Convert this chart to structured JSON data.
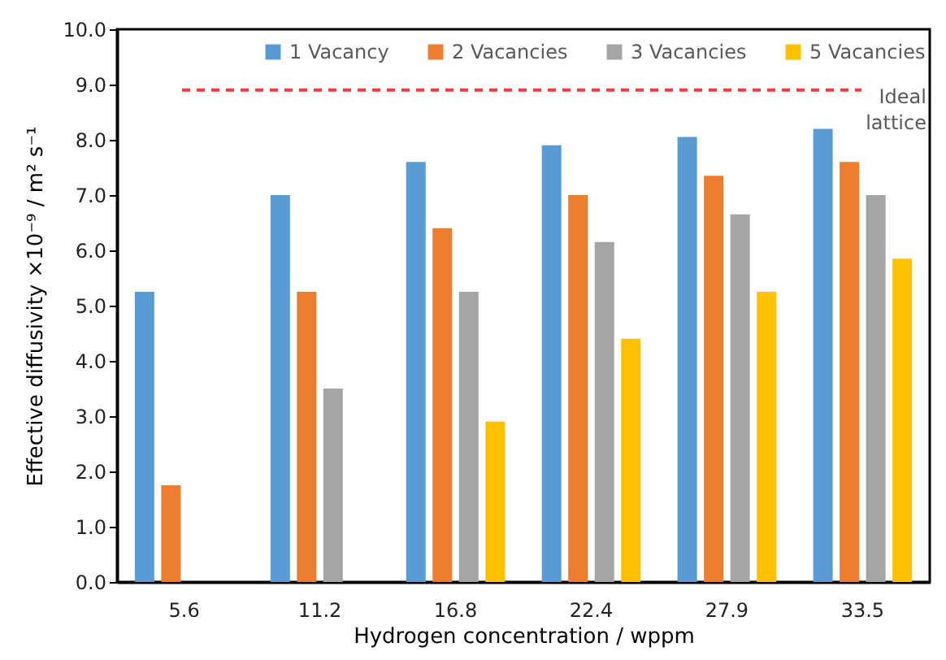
{
  "chart_data": {
    "type": "bar",
    "xlabel": "Hydrogen concentration / wppm",
    "ylabel": "Effective diffusivity ×10⁻⁹ / m² s⁻¹",
    "categories": [
      "5.6",
      "11.2",
      "16.8",
      "22.4",
      "27.9",
      "33.5"
    ],
    "series": [
      {
        "name": "1 Vacancy",
        "color": "#5b9bd5",
        "values": [
          5.25,
          7.0,
          7.6,
          7.9,
          8.05,
          8.2
        ]
      },
      {
        "name": "2 Vacancies",
        "color": "#ed7d31",
        "values": [
          1.75,
          5.25,
          6.4,
          7.0,
          7.35,
          7.6
        ]
      },
      {
        "name": "3 Vacancies",
        "color": "#a5a5a5",
        "values": [
          null,
          3.5,
          5.25,
          6.15,
          6.65,
          7.0
        ]
      },
      {
        "name": "5 Vacancies",
        "color": "#ffc000",
        "values": [
          null,
          null,
          2.9,
          4.4,
          5.25,
          5.85
        ]
      }
    ],
    "ylim": [
      0,
      10
    ],
    "yticks": [
      {
        "value": 0,
        "label": "0.0"
      },
      {
        "value": 1,
        "label": "1.0"
      },
      {
        "value": 2,
        "label": "2.0"
      },
      {
        "value": 3,
        "label": "3.0"
      },
      {
        "value": 4,
        "label": "4.0"
      },
      {
        "value": 5,
        "label": "5.0"
      },
      {
        "value": 6,
        "label": "6.0"
      },
      {
        "value": 7,
        "label": "7.0"
      },
      {
        "value": 8,
        "label": "8.0"
      },
      {
        "value": 9,
        "label": "9.0"
      },
      {
        "value": 10,
        "label": "10.0"
      }
    ],
    "ref_lines": [
      {
        "axis": "y",
        "value": 8.9,
        "label": "Ideal lattice",
        "color": "#ff3b3b",
        "line_style": "dashed"
      }
    ],
    "legend": "top",
    "grid": false
  }
}
